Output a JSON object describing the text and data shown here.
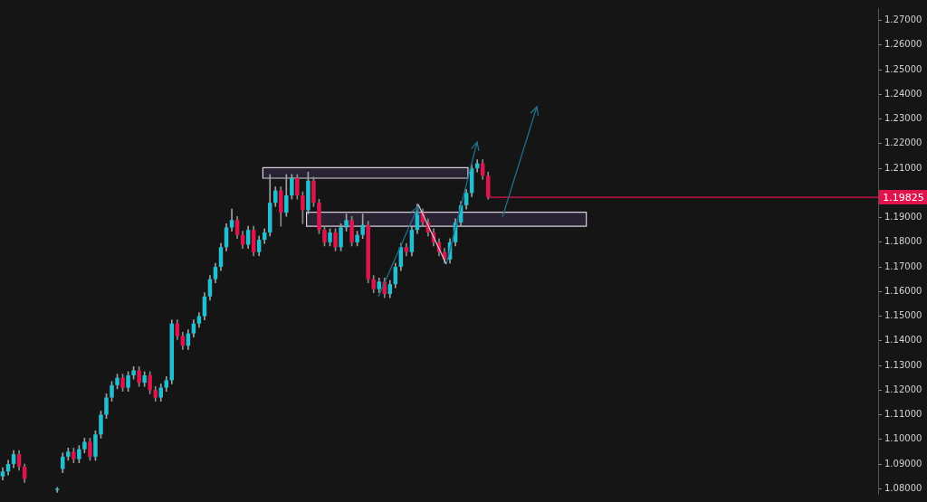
{
  "chart_data": {
    "type": "candlestick",
    "categories": [
      null,
      null,
      null,
      null,
      null,
      null,
      null,
      null,
      null,
      null,
      null,
      null,
      null,
      null,
      null,
      null,
      null,
      null,
      null,
      null,
      null,
      null,
      null,
      null,
      null,
      null,
      null,
      null,
      null,
      null,
      null,
      null,
      null,
      null,
      null,
      null,
      null,
      null,
      null,
      null,
      null,
      null,
      null,
      null,
      null,
      null,
      null,
      null,
      null,
      null,
      null,
      null,
      null,
      null,
      null,
      null,
      null,
      null,
      null,
      null,
      null,
      null,
      null,
      null,
      null,
      null,
      null,
      null,
      null,
      null,
      null,
      null,
      null,
      null,
      null,
      null,
      null,
      null,
      null,
      null,
      null,
      null,
      null,
      null,
      null,
      null,
      null,
      null,
      null,
      null,
      null,
      null,
      null,
      null,
      null,
      null,
      null,
      null,
      null,
      null,
      null,
      null,
      null,
      null,
      null,
      null,
      null,
      null,
      null,
      null,
      null,
      null,
      null,
      null,
      null,
      null,
      null,
      null,
      null,
      null,
      null,
      null,
      null,
      null,
      null,
      null,
      null,
      null,
      null,
      null,
      null,
      null,
      null,
      null,
      null,
      null,
      null,
      null,
      null,
      null,
      null,
      null,
      null,
      null,
      null,
      null,
      null,
      null,
      null,
      null,
      null,
      null,
      null,
      null,
      null,
      null,
      null,
      null,
      null,
      null,
      null
    ],
    "ohlc": [
      [
        1.085,
        1.0885,
        1.0835,
        1.087
      ],
      [
        1.087,
        1.0915,
        1.0855,
        1.09
      ],
      [
        1.09,
        1.0955,
        1.0885,
        1.094
      ],
      [
        1.094,
        1.0955,
        1.0875,
        1.089
      ],
      [
        1.089,
        1.09,
        1.0825,
        1.084
      ],
      null,
      null,
      null,
      null,
      null,
      [
        1.0795,
        1.0805,
        1.0785,
        1.08
      ],
      [
        1.088,
        1.0945,
        1.0865,
        1.093
      ],
      [
        1.093,
        1.0965,
        1.0915,
        1.095
      ],
      [
        1.095,
        1.0965,
        1.0905,
        1.092
      ],
      [
        1.092,
        1.0975,
        1.0905,
        1.096
      ],
      [
        1.096,
        1.1005,
        1.0945,
        1.099
      ],
      [
        1.099,
        1.1005,
        1.0915,
        1.093
      ],
      [
        1.093,
        1.1035,
        1.0915,
        1.102
      ],
      [
        1.102,
        1.1115,
        1.1005,
        1.11
      ],
      [
        1.11,
        1.1185,
        1.1085,
        1.117
      ],
      [
        1.117,
        1.1235,
        1.1155,
        1.122
      ],
      [
        1.122,
        1.1265,
        1.1205,
        1.125
      ],
      [
        1.125,
        1.1265,
        1.1195,
        1.121
      ],
      [
        1.121,
        1.1275,
        1.1195,
        1.126
      ],
      [
        1.126,
        1.1295,
        1.1245,
        1.128
      ],
      [
        1.128,
        1.1295,
        1.1215,
        1.123
      ],
      [
        1.123,
        1.1275,
        1.1215,
        1.126
      ],
      [
        1.126,
        1.1275,
        1.1185,
        1.12
      ],
      [
        1.12,
        1.1215,
        1.1155,
        1.117
      ],
      [
        1.117,
        1.1225,
        1.1155,
        1.121
      ],
      [
        1.121,
        1.1255,
        1.1195,
        1.124
      ],
      [
        1.124,
        1.1485,
        1.1225,
        1.147
      ],
      [
        1.147,
        1.1485,
        1.1405,
        1.142
      ],
      [
        1.142,
        1.1435,
        1.1365,
        1.138
      ],
      [
        1.138,
        1.1445,
        1.1365,
        1.143
      ],
      [
        1.143,
        1.1485,
        1.1415,
        1.147
      ],
      [
        1.147,
        1.1515,
        1.1455,
        1.15
      ],
      [
        1.15,
        1.1595,
        1.1485,
        1.158
      ],
      [
        1.158,
        1.1665,
        1.1565,
        1.165
      ],
      [
        1.165,
        1.1715,
        1.1635,
        1.17
      ],
      [
        1.17,
        1.1795,
        1.1685,
        1.178
      ],
      [
        1.178,
        1.1875,
        1.1765,
        1.186
      ],
      [
        1.186,
        1.1935,
        1.1845,
        1.189
      ],
      [
        1.189,
        1.1905,
        1.1815,
        1.183
      ],
      [
        1.183,
        1.1845,
        1.1775,
        1.179
      ],
      [
        1.179,
        1.1865,
        1.1775,
        1.185
      ],
      [
        1.185,
        1.1865,
        1.1745,
        1.176
      ],
      [
        1.176,
        1.1825,
        1.1745,
        1.181
      ],
      [
        1.181,
        1.1855,
        1.1795,
        1.184
      ],
      [
        1.184,
        1.2075,
        1.1825,
        1.196
      ],
      [
        1.196,
        1.2025,
        1.1945,
        1.201
      ],
      [
        1.201,
        1.2025,
        1.1865,
        1.192
      ],
      [
        1.192,
        1.2075,
        1.1905,
        1.199
      ],
      [
        1.199,
        1.2075,
        1.1975,
        1.206
      ],
      [
        1.206,
        1.2075,
        1.1975,
        1.199
      ],
      [
        1.199,
        1.2005,
        1.1875,
        1.193
      ],
      [
        1.193,
        1.2085,
        1.1915,
        1.205
      ],
      [
        1.205,
        1.2065,
        1.1945,
        1.196
      ],
      [
        1.196,
        1.1975,
        1.1835,
        1.185
      ],
      [
        1.185,
        1.1865,
        1.1785,
        1.18
      ],
      [
        1.18,
        1.1855,
        1.1785,
        1.184
      ],
      [
        1.184,
        1.1855,
        1.1765,
        1.178
      ],
      [
        1.178,
        1.1875,
        1.1765,
        1.186
      ],
      [
        1.186,
        1.1915,
        1.1845,
        1.189
      ],
      [
        1.189,
        1.1905,
        1.1785,
        1.18
      ],
      [
        1.18,
        1.1845,
        1.1785,
        1.183
      ],
      [
        1.183,
        1.1915,
        1.1815,
        1.187
      ],
      [
        1.187,
        1.1885,
        1.1635,
        1.165
      ],
      [
        1.165,
        1.1665,
        1.1595,
        1.161
      ],
      [
        1.161,
        1.1655,
        1.1595,
        1.164
      ],
      [
        1.164,
        1.1655,
        1.1575,
        1.159
      ],
      [
        1.159,
        1.1645,
        1.1575,
        1.163
      ],
      [
        1.163,
        1.1715,
        1.1615,
        1.17
      ],
      [
        1.17,
        1.1795,
        1.1685,
        1.178
      ],
      [
        1.178,
        1.1795,
        1.1745,
        1.176
      ],
      [
        1.176,
        1.1865,
        1.1745,
        1.185
      ],
      [
        1.185,
        1.1955,
        1.1835,
        1.192
      ],
      [
        1.192,
        1.1935,
        1.1865,
        1.188
      ],
      [
        1.188,
        1.1895,
        1.1825,
        1.184
      ],
      [
        1.184,
        1.1855,
        1.1785,
        1.18
      ],
      [
        1.18,
        1.1815,
        1.1745,
        1.176
      ],
      [
        1.176,
        1.1775,
        1.1715,
        1.173
      ],
      [
        1.173,
        1.1815,
        1.1715,
        1.18
      ],
      [
        1.18,
        1.1895,
        1.1785,
        1.188
      ],
      [
        1.188,
        1.1965,
        1.1865,
        1.195
      ],
      [
        1.195,
        1.2015,
        1.1935,
        1.2
      ],
      [
        1.2,
        1.2115,
        1.1985,
        1.21
      ],
      [
        1.21,
        1.2135,
        1.2085,
        1.212
      ],
      [
        1.212,
        1.2135,
        1.2055,
        1.207
      ],
      [
        1.207,
        1.2085,
        1.1975,
        1.1983
      ],
      null,
      null,
      null,
      null,
      null,
      null,
      null,
      null,
      null,
      null,
      null,
      null,
      null,
      null,
      null,
      null,
      null,
      null,
      null,
      null,
      null,
      null,
      null,
      null,
      null,
      null,
      null,
      null,
      null,
      null,
      null,
      null,
      null,
      null,
      null,
      null,
      null,
      null,
      null,
      null,
      null,
      null,
      null,
      null,
      null,
      null,
      null,
      null,
      null,
      null,
      null,
      null,
      null,
      null,
      null,
      null,
      null,
      null,
      null,
      null,
      null,
      null,
      null,
      null,
      null,
      null,
      null,
      null,
      null,
      null,
      null
    ],
    "ylim": [
      1.0779,
      1.275
    ],
    "yticks": [
      {
        "value": 1.08,
        "label": "1.08000"
      },
      {
        "value": 1.09,
        "label": "1.09000"
      },
      {
        "value": 1.1,
        "label": "1.10000"
      },
      {
        "value": 1.11,
        "label": "1.11000"
      },
      {
        "value": 1.12,
        "label": "1.12000"
      },
      {
        "value": 1.13,
        "label": "1.13000"
      },
      {
        "value": 1.14,
        "label": "1.14000"
      },
      {
        "value": 1.15,
        "label": "1.15000"
      },
      {
        "value": 1.16,
        "label": "1.16000"
      },
      {
        "value": 1.17,
        "label": "1.17000"
      },
      {
        "value": 1.18,
        "label": "1.18000"
      },
      {
        "value": 1.19,
        "label": "1.19000"
      },
      {
        "value": 1.2,
        "label": null
      },
      {
        "value": 1.21,
        "label": "1.21000"
      },
      {
        "value": 1.22,
        "label": "1.22000"
      },
      {
        "value": 1.23,
        "label": "1.23000"
      },
      {
        "value": 1.24,
        "label": "1.24000"
      },
      {
        "value": 1.25,
        "label": "1.25000"
      },
      {
        "value": 1.26,
        "label": "1.26000"
      },
      {
        "value": 1.27,
        "label": "1.27000"
      }
    ],
    "ref_lines": [
      {
        "axis": "y",
        "value": 1.19825,
        "label": "1.19825",
        "color": "#e0144c"
      }
    ],
    "bands": [
      {
        "axis": "y",
        "from": 1.206,
        "to": 1.2103,
        "color": "#2d2438"
      },
      {
        "axis": "y",
        "from": 1.1865,
        "to": 1.1922,
        "color": "#2d2438"
      }
    ],
    "tick_labels": "y",
    "grid": false,
    "legend": false
  }
}
